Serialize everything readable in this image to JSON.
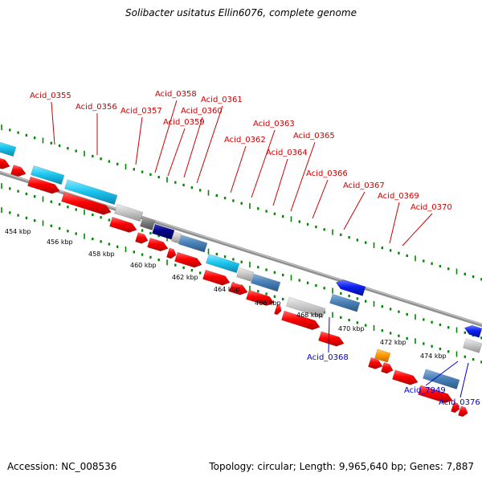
{
  "title": "Solibacter usitatus Ellin6076, complete genome",
  "footer": {
    "accession": "Accession: NC_008536",
    "summary": "Topology: circular; Length: 9,965,640 bp; Genes: 7,887"
  },
  "colors": {
    "red": "#ff0000",
    "cyan": "#1ec8f0",
    "steel": "#4a82b8",
    "grey": "#c8c8c8",
    "navy": "#000088",
    "blue": "#0a1ef0",
    "orange": "#ff9900",
    "tick": "#008800",
    "backbone": "#808080"
  },
  "scale": {
    "ticks": [
      "454 kbp",
      "456 kbp",
      "458 kbp",
      "460 kbp",
      "462 kbp",
      "464 kbp",
      "466 kbp",
      "468 kbp",
      "470 kbp",
      "472 kbp",
      "474 kbp"
    ]
  },
  "gene_labels": {
    "forward": [
      "Acid_0355",
      "Acid_0356",
      "Acid_0357",
      "Acid_0358",
      "Acid_0359",
      "Acid_0360",
      "Acid_0361",
      "Acid_0362",
      "Acid_0363",
      "Acid_0364",
      "Acid_0365",
      "Acid_0366",
      "Acid_0367",
      "Acid_0369",
      "Acid_0370"
    ],
    "reverse": [
      "Acid_0368",
      "Acid_7949",
      "Acid_0376"
    ]
  }
}
